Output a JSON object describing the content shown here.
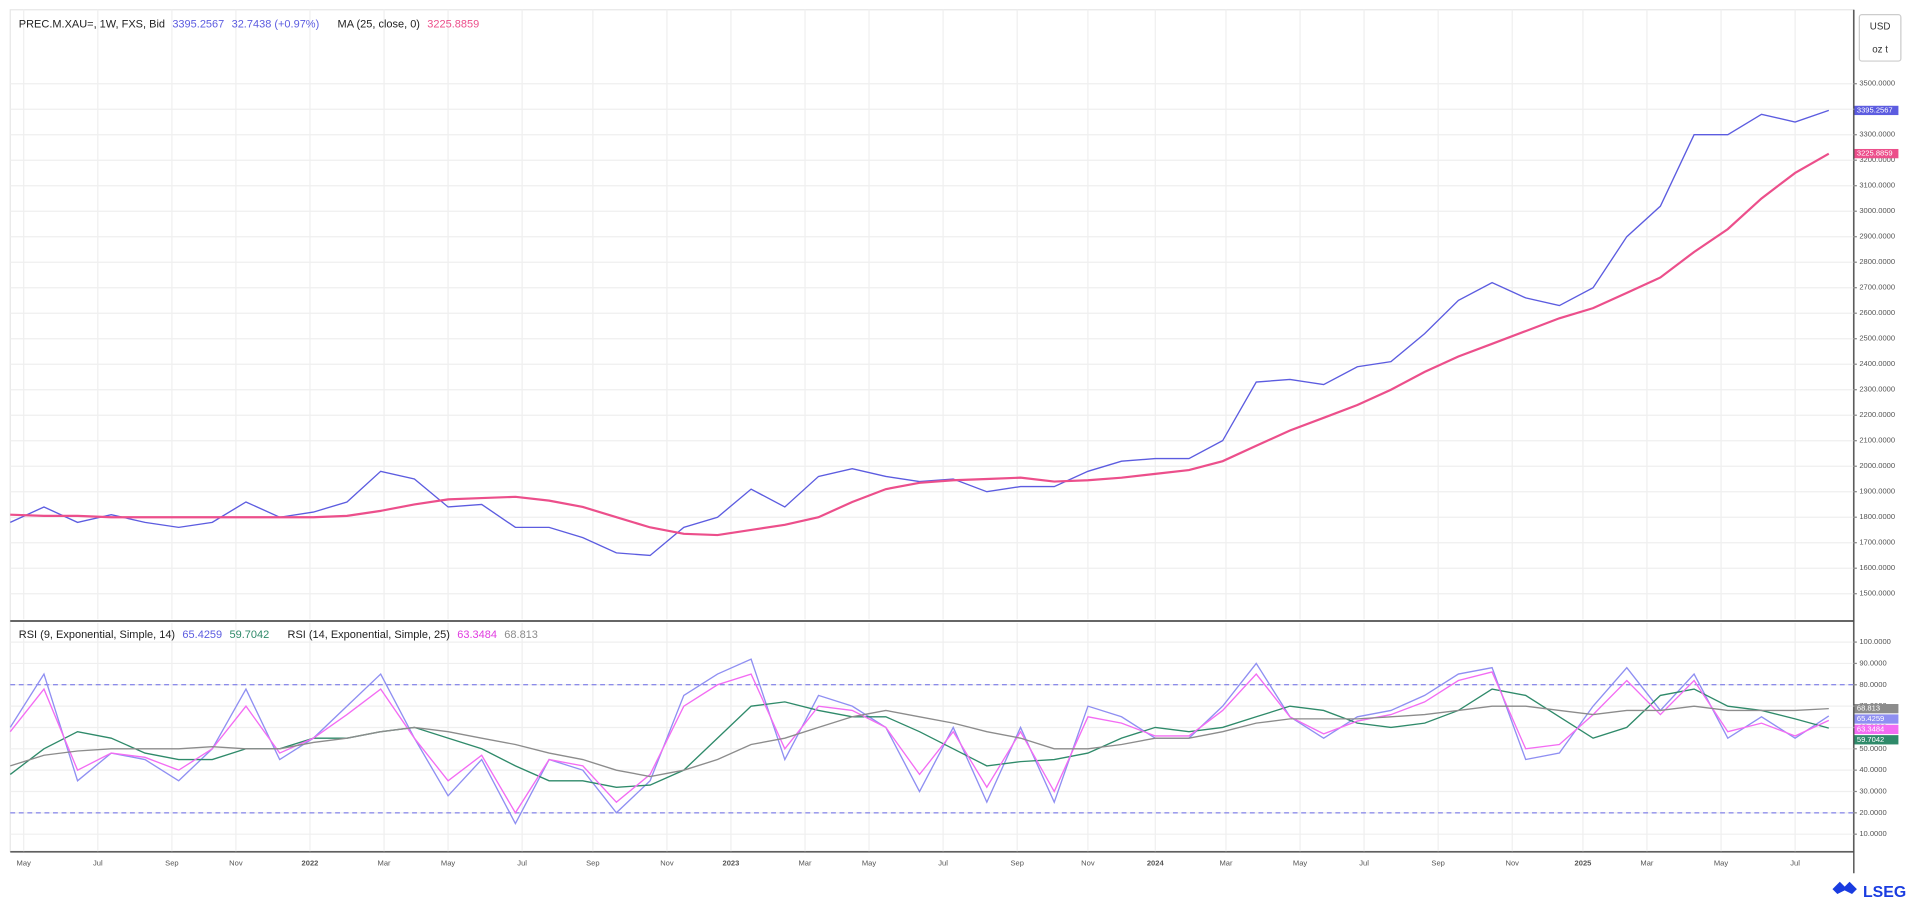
{
  "chart_data": [
    {
      "type": "line",
      "title": "PREC.M.XAU=, 1W, FXS, Bid",
      "change": "32.7438 (+0.97%)",
      "currency": "USD",
      "unit": "oz t",
      "xlim": [
        0,
        54
      ],
      "xticks": [
        {
          "value": 0.4,
          "label": "May"
        },
        {
          "value": 2.6,
          "label": "Jul"
        },
        {
          "value": 4.8,
          "label": "Sep"
        },
        {
          "value": 6.7,
          "label": "Nov"
        },
        {
          "value": 8.9,
          "label": "2022"
        },
        {
          "value": 11.1,
          "label": "Mar"
        },
        {
          "value": 13.0,
          "label": "May"
        },
        {
          "value": 15.2,
          "label": "Jul"
        },
        {
          "value": 17.3,
          "label": "Sep"
        },
        {
          "value": 19.5,
          "label": "Nov"
        },
        {
          "value": 21.4,
          "label": "2023"
        },
        {
          "value": 23.6,
          "label": "Mar"
        },
        {
          "value": 25.5,
          "label": "May"
        },
        {
          "value": 27.7,
          "label": "Jul"
        },
        {
          "value": 29.9,
          "label": "Sep"
        },
        {
          "value": 32.0,
          "label": "Nov"
        },
        {
          "value": 34.0,
          "label": "2024"
        },
        {
          "value": 36.1,
          "label": "Mar"
        },
        {
          "value": 38.3,
          "label": "May"
        },
        {
          "value": 40.2,
          "label": "Jul"
        },
        {
          "value": 42.4,
          "label": "Sep"
        },
        {
          "value": 44.6,
          "label": "Nov"
        },
        {
          "value": 46.7,
          "label": "2025"
        },
        {
          "value": 48.6,
          "label": "Mar"
        },
        {
          "value": 50.8,
          "label": "May"
        },
        {
          "value": 53.0,
          "label": "Jul"
        }
      ],
      "ylim": [
        1400,
        3790
      ],
      "yticks": [
        {
          "value": 1500,
          "label": "1500.0000"
        },
        {
          "value": 1600,
          "label": "1600.0000"
        },
        {
          "value": 1700,
          "label": "1700.0000"
        },
        {
          "value": 1800,
          "label": "1800.0000"
        },
        {
          "value": 1900,
          "label": "1900.0000"
        },
        {
          "value": 2000,
          "label": "2000.0000"
        },
        {
          "value": 2100,
          "label": "2100.0000"
        },
        {
          "value": 2200,
          "label": "2200.0000"
        },
        {
          "value": 2300,
          "label": "2300.0000"
        },
        {
          "value": 2400,
          "label": "2400.0000"
        },
        {
          "value": 2500,
          "label": "2500.0000"
        },
        {
          "value": 2600,
          "label": "2600.0000"
        },
        {
          "value": 2700,
          "label": "2700.0000"
        },
        {
          "value": 2800,
          "label": "2800.0000"
        },
        {
          "value": 2900,
          "label": "2900.0000"
        },
        {
          "value": 3000,
          "label": "3000.0000"
        },
        {
          "value": 3100,
          "label": "3100.0000"
        },
        {
          "value": 3200,
          "label": "3200.0000"
        },
        {
          "value": 3300,
          "label": "3300.0000"
        },
        {
          "value": 3400,
          "label": "3400.0000"
        },
        {
          "value": 3500,
          "label": "3500.0000"
        }
      ],
      "grid": true,
      "series": [
        {
          "color": "#5c5ce0",
          "values": [
            1780,
            1840,
            1780,
            1810,
            1780,
            1760,
            1780,
            1860,
            1800,
            1820,
            1860,
            1980,
            1950,
            1840,
            1850,
            1760,
            1760,
            1720,
            1660,
            1650,
            1760,
            1800,
            1910,
            1840,
            1960,
            1990,
            1960,
            1940,
            1950,
            1900,
            1920,
            1920,
            1980,
            2020,
            2030,
            2030,
            2100,
            2330,
            2340,
            2320,
            2390,
            2410,
            2520,
            2650,
            2720,
            2660,
            2630,
            2700,
            2900,
            3020,
            3300,
            3300,
            3380,
            3350,
            3395.2567
          ]
        },
        {
          "name": "MA (25, close, 0)",
          "color": "#ec4f8b",
          "values": [
            1810,
            1805,
            1805,
            1800,
            1800,
            1800,
            1800,
            1800,
            1800,
            1800,
            1805,
            1825,
            1850,
            1870,
            1875,
            1880,
            1865,
            1840,
            1800,
            1760,
            1735,
            1730,
            1750,
            1770,
            1800,
            1860,
            1910,
            1935,
            1945,
            1950,
            1955,
            1940,
            1945,
            1955,
            1970,
            1985,
            2020,
            2080,
            2140,
            2190,
            2240,
            2300,
            2370,
            2430,
            2480,
            2530,
            2580,
            2620,
            2680,
            2740,
            2840,
            2930,
            3050,
            3150,
            3225.8859
          ]
        }
      ]
    },
    {
      "type": "line",
      "ylim": [
        2,
        109
      ],
      "yticks": [
        {
          "value": 10,
          "label": "10.0000"
        },
        {
          "value": 20,
          "label": "20.0000"
        },
        {
          "value": 30,
          "label": "30.0000"
        },
        {
          "value": 40,
          "label": "40.0000"
        },
        {
          "value": 50,
          "label": "50.0000"
        },
        {
          "value": 60,
          "label": "60.0000"
        },
        {
          "value": 70,
          "label": "70.0000"
        },
        {
          "value": 80,
          "label": "80.0000"
        },
        {
          "value": 90,
          "label": "90.0000"
        },
        {
          "value": 100,
          "label": "100.0000"
        }
      ],
      "levels": [
        80,
        20
      ],
      "series": [
        {
          "name": "RSI (9, Exponential, Simple, 14)",
          "color": "#8f8ff2",
          "values": [
            60,
            85,
            35,
            48,
            45,
            35,
            50,
            78,
            45,
            55,
            70,
            85,
            55,
            28,
            45,
            15,
            45,
            40,
            20,
            35,
            75,
            85,
            92,
            45,
            75,
            70,
            60,
            30,
            60,
            25,
            60,
            25,
            70,
            65,
            55,
            55,
            70,
            90,
            65,
            55,
            65,
            68,
            75,
            85,
            88,
            45,
            48,
            70,
            88,
            68,
            85,
            55,
            65,
            55,
            65.4259
          ]
        },
        {
          "color": "#2f8a6a",
          "values": [
            38,
            50,
            58,
            55,
            48,
            45,
            45,
            50,
            50,
            55,
            55,
            58,
            60,
            55,
            50,
            42,
            35,
            35,
            32,
            33,
            40,
            55,
            70,
            72,
            68,
            65,
            65,
            58,
            50,
            42,
            44,
            45,
            48,
            55,
            60,
            58,
            60,
            65,
            70,
            68,
            62,
            60,
            62,
            68,
            78,
            75,
            65,
            55,
            60,
            75,
            78,
            70,
            68,
            64,
            59.7042
          ]
        },
        {
          "name": "RSI (14, Exponential, Simple, 25)",
          "color": "#f36cf3",
          "values": [
            58,
            78,
            40,
            48,
            46,
            40,
            50,
            70,
            48,
            55,
            66,
            78,
            55,
            35,
            47,
            20,
            45,
            42,
            25,
            38,
            70,
            80,
            85,
            50,
            70,
            68,
            60,
            38,
            58,
            32,
            58,
            30,
            65,
            62,
            56,
            56,
            68,
            85,
            65,
            57,
            63,
            66,
            72,
            82,
            86,
            50,
            52,
            66,
            82,
            66,
            82,
            58,
            62,
            56,
            63.3484
          ]
        },
        {
          "color": "#8c8c8c",
          "values": [
            42,
            47,
            49,
            50,
            50,
            50,
            51,
            50,
            50,
            53,
            55,
            58,
            60,
            58,
            55,
            52,
            48,
            45,
            40,
            37,
            40,
            45,
            52,
            55,
            60,
            65,
            68,
            65,
            62,
            58,
            55,
            50,
            50,
            52,
            55,
            55,
            58,
            62,
            64,
            64,
            64,
            65,
            66,
            68,
            70,
            70,
            68,
            66,
            68,
            68,
            70,
            68,
            68,
            68,
            68.813
          ]
        }
      ]
    }
  ],
  "footer": {
    "logo": "LSEG"
  }
}
